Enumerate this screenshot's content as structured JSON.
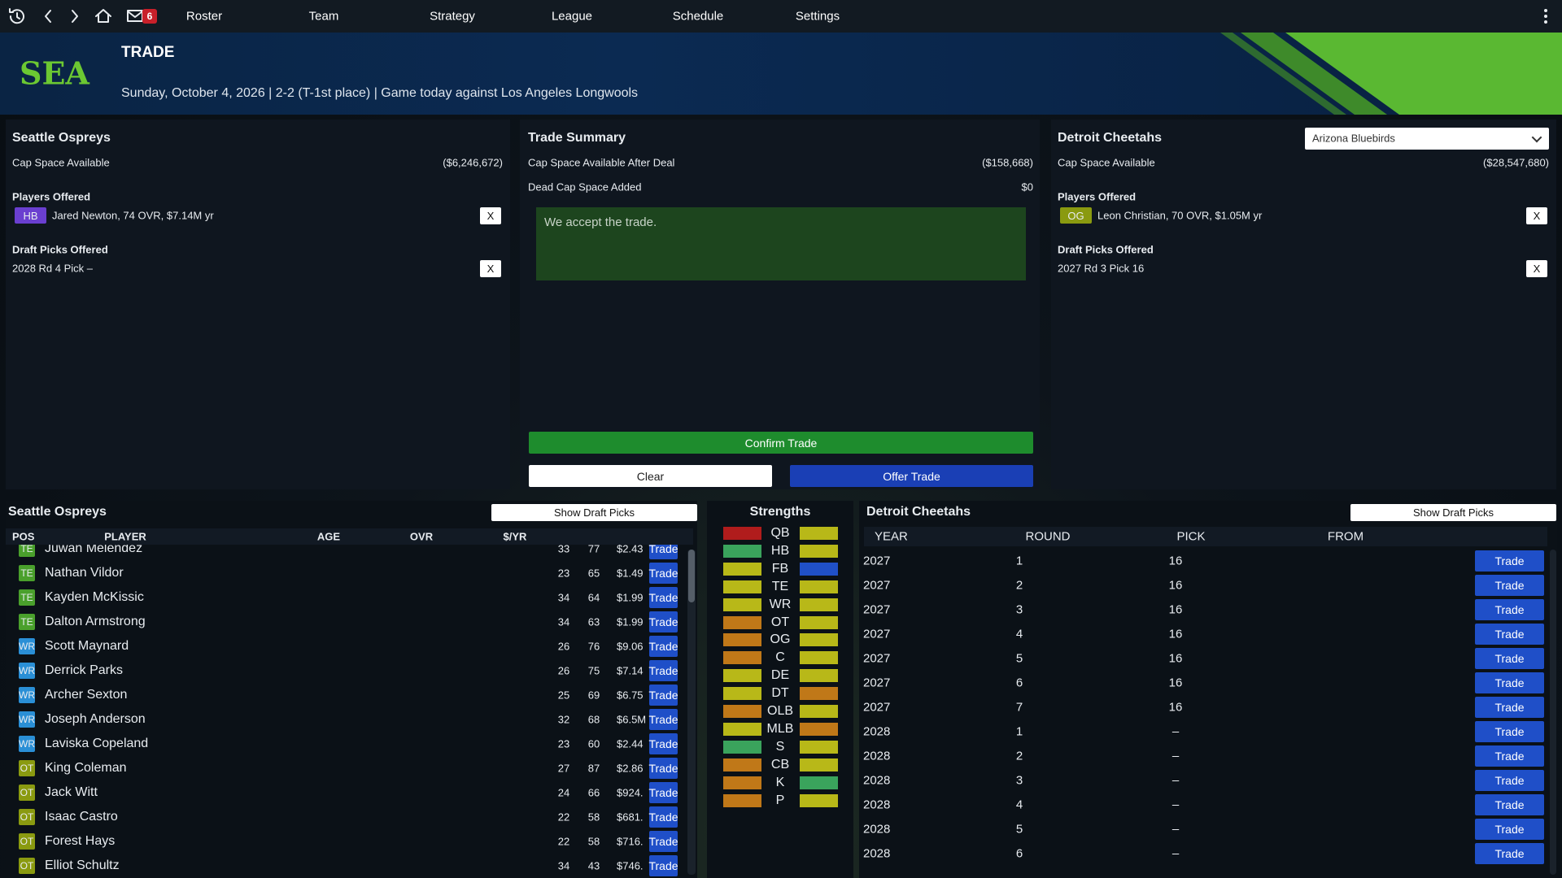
{
  "nav": {
    "items": [
      "Roster",
      "Team",
      "Strategy",
      "League",
      "Schedule",
      "Settings"
    ],
    "mail_count": "6"
  },
  "header": {
    "abbr": "SEA",
    "title": "TRADE",
    "subtitle": "Sunday, October 4, 2026 | 2-2 (T-1st place) | Game today against Los Angeles Longwools"
  },
  "left_panel": {
    "team": "Seattle Ospreys",
    "cap_label": "Cap Space Available",
    "cap_value": "($6,246,672)",
    "players_label": "Players Offered",
    "players": [
      {
        "pos": "HB",
        "text": "Jared Newton, 74 OVR, $7.14M yr"
      }
    ],
    "picks_label": "Draft Picks Offered",
    "picks": [
      "2028 Rd 4 Pick –"
    ],
    "remove": "X"
  },
  "summary": {
    "title": "Trade Summary",
    "rows": [
      {
        "label": "Cap Space Available After Deal",
        "value": "($158,668)"
      },
      {
        "label": "Dead Cap Space Added",
        "value": "$0"
      }
    ],
    "message": "We accept the trade.",
    "confirm": "Confirm Trade",
    "clear": "Clear",
    "offer": "Offer Trade"
  },
  "right_panel": {
    "team": "Detroit Cheetahs",
    "select": "Arizona Bluebirds",
    "cap_label": "Cap Space Available",
    "cap_value": "($28,547,680)",
    "players_label": "Players Offered",
    "players": [
      {
        "pos": "OG",
        "text": "Leon Christian, 70 OVR, $1.05M yr"
      }
    ],
    "picks_label": "Draft Picks Offered",
    "picks": [
      "2027 Rd 3 Pick 16"
    ],
    "remove": "X"
  },
  "roster": {
    "title": "Seattle Ospreys",
    "button": "Show Draft Picks",
    "columns": [
      "POS",
      "PLAYER",
      "AGE",
      "OVR",
      "$/YR"
    ],
    "action": "Trade",
    "rows": [
      [
        "TE",
        "Juwan Melendez",
        33,
        77,
        "$2.43"
      ],
      [
        "TE",
        "Nathan Vildor",
        23,
        65,
        "$1.49"
      ],
      [
        "TE",
        "Kayden McKissic",
        34,
        64,
        "$1.99"
      ],
      [
        "TE",
        "Dalton Armstrong",
        34,
        63,
        "$1.99"
      ],
      [
        "WR",
        "Scott Maynard",
        26,
        76,
        "$9.06"
      ],
      [
        "WR",
        "Derrick Parks",
        26,
        75,
        "$7.14"
      ],
      [
        "WR",
        "Archer Sexton",
        25,
        69,
        "$6.75"
      ],
      [
        "WR",
        "Joseph Anderson",
        32,
        68,
        "$6.5M"
      ],
      [
        "WR",
        "Laviska Copeland",
        23,
        60,
        "$2.44"
      ],
      [
        "OT",
        "King Coleman",
        27,
        87,
        "$2.86"
      ],
      [
        "OT",
        "Jack Witt",
        24,
        66,
        "$924."
      ],
      [
        "OT",
        "Isaac Castro",
        22,
        58,
        "$681."
      ],
      [
        "OT",
        "Forest Hays",
        22,
        58,
        "$716."
      ],
      [
        "OT",
        "Elliot Schultz",
        34,
        43,
        "$746."
      ]
    ]
  },
  "strengths": {
    "title": "Strengths",
    "rows": [
      {
        "pos": "QB",
        "left": "#b01c1c",
        "right": "#b8b818"
      },
      {
        "pos": "HB",
        "left": "#3aa35c",
        "right": "#b8b818"
      },
      {
        "pos": "FB",
        "left": "#b8b818",
        "right": "#2050c8"
      },
      {
        "pos": "TE",
        "left": "#b8b818",
        "right": "#b8b818"
      },
      {
        "pos": "WR",
        "left": "#b8b818",
        "right": "#b8b818"
      },
      {
        "pos": "OT",
        "left": "#c07818",
        "right": "#b8b818"
      },
      {
        "pos": "OG",
        "left": "#c07818",
        "right": "#b8b818"
      },
      {
        "pos": "C",
        "left": "#c07818",
        "right": "#b8b818"
      },
      {
        "pos": "DE",
        "left": "#b8b818",
        "right": "#b8b818"
      },
      {
        "pos": "DT",
        "left": "#b8b818",
        "right": "#c07818"
      },
      {
        "pos": "OLB",
        "left": "#c07818",
        "right": "#b8b818"
      },
      {
        "pos": "MLB",
        "left": "#b8b818",
        "right": "#c07818"
      },
      {
        "pos": "S",
        "left": "#3aa35c",
        "right": "#b8b818"
      },
      {
        "pos": "CB",
        "left": "#c07818",
        "right": "#b8b818"
      },
      {
        "pos": "K",
        "left": "#c07818",
        "right": "#3aa35c"
      },
      {
        "pos": "P",
        "left": "#c07818",
        "right": "#b8b818"
      }
    ]
  },
  "picks": {
    "title": "Detroit Cheetahs",
    "button": "Show Draft Picks",
    "columns": [
      "YEAR",
      "ROUND",
      "PICK",
      "FROM"
    ],
    "action": "Trade",
    "rows": [
      [
        2027,
        1,
        "16"
      ],
      [
        2027,
        2,
        "16"
      ],
      [
        2027,
        3,
        "16"
      ],
      [
        2027,
        4,
        "16"
      ],
      [
        2027,
        5,
        "16"
      ],
      [
        2027,
        6,
        "16"
      ],
      [
        2027,
        7,
        "16"
      ],
      [
        2028,
        1,
        "–"
      ],
      [
        2028,
        2,
        "–"
      ],
      [
        2028,
        3,
        "–"
      ],
      [
        2028,
        4,
        "–"
      ],
      [
        2028,
        5,
        "–"
      ],
      [
        2028,
        6,
        "–"
      ]
    ]
  }
}
